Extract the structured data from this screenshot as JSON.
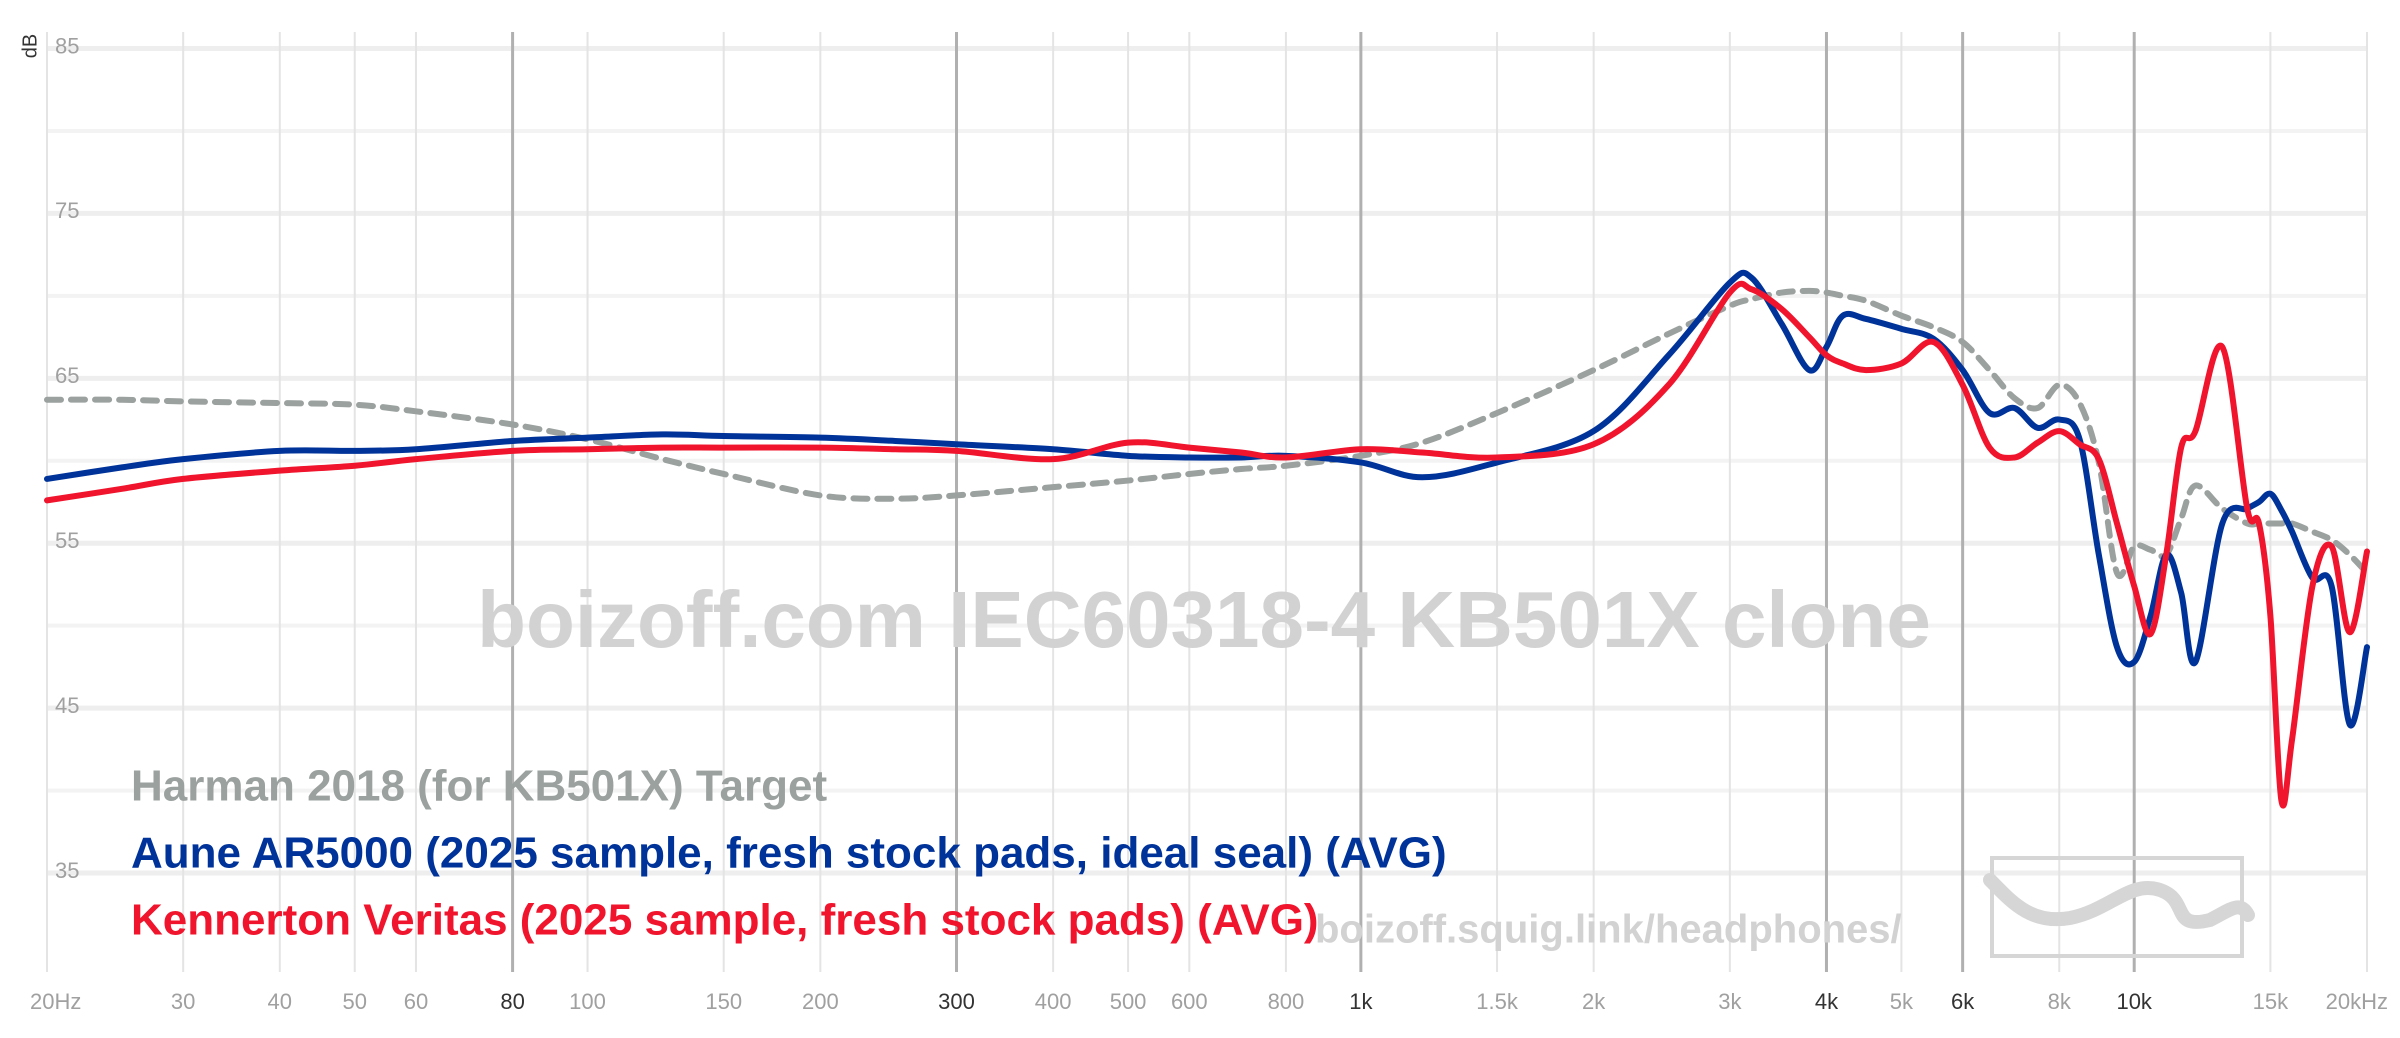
{
  "chart_data": {
    "type": "line",
    "y_label": "dB",
    "watermark": "boizoff.com IEC60318-4 KB501X clone",
    "source_url": "boizoff.squig.link/headphones/",
    "log_x": true,
    "grid": true,
    "xlim": [
      20,
      20000
    ],
    "ylim": [
      29,
      86
    ],
    "yticks": [
      35,
      45,
      55,
      65,
      75,
      85
    ],
    "y_minor_grid": [
      40,
      50,
      60,
      70,
      80
    ],
    "xticks": [
      {
        "value": 20,
        "label": "20Hz"
      },
      30,
      40,
      50,
      60,
      80,
      100,
      150,
      200,
      300,
      400,
      500,
      600,
      800,
      {
        "value": 1000,
        "label": "1k"
      },
      {
        "value": 1500,
        "label": "1.5k"
      },
      {
        "value": 2000,
        "label": "2k"
      },
      {
        "value": 3000,
        "label": "3k"
      },
      {
        "value": 4000,
        "label": "4k"
      },
      {
        "value": 5000,
        "label": "5k"
      },
      {
        "value": 6000,
        "label": "6k"
      },
      {
        "value": 8000,
        "label": "8k"
      },
      {
        "value": 10000,
        "label": "10k"
      },
      {
        "value": 15000,
        "label": "15k"
      },
      {
        "value": 20000,
        "label": "20kHz"
      }
    ],
    "xticks_emphasized": [
      80,
      300,
      1000,
      4000,
      6000,
      10000
    ],
    "x": [
      20,
      25,
      30,
      40,
      50,
      60,
      80,
      100,
      125,
      150,
      200,
      250,
      300,
      400,
      500,
      600,
      700,
      800,
      1000,
      1200,
      1500,
      2000,
      2500,
      3000,
      3200,
      3500,
      3800,
      4000,
      4200,
      4500,
      5000,
      5500,
      6000,
      6500,
      7000,
      7500,
      8000,
      8500,
      9000,
      9500,
      10000,
      10500,
      11000,
      11500,
      12000,
      13000,
      14000,
      14500,
      15000,
      15500,
      16000,
      17000,
      18000,
      19000,
      20000
    ],
    "series": [
      {
        "name": "Harman 2018 (for KB501X) Target",
        "color": "#9aa19f",
        "dashed": true,
        "values": [
          63.7,
          63.7,
          63.6,
          63.5,
          63.4,
          63.0,
          62.2,
          61.3,
          60.1,
          59.2,
          57.9,
          57.7,
          57.9,
          58.4,
          58.8,
          59.2,
          59.5,
          59.7,
          60.3,
          61.1,
          62.9,
          65.5,
          67.7,
          69.4,
          69.8,
          70.2,
          70.3,
          70.2,
          70.0,
          69.7,
          68.8,
          68.1,
          67.2,
          65.5,
          63.8,
          63.2,
          64.6,
          63.5,
          59.9,
          53.2,
          54.8,
          54.6,
          54.3,
          56.5,
          58.5,
          57.1,
          56.2,
          56.2,
          56.2,
          56.2,
          56.2,
          55.7,
          55.2,
          54.3,
          53.2
        ]
      },
      {
        "name": "Aune AR5000 (2025 sample, fresh stock pads, ideal seal) (AVG)",
        "color": "#00339a",
        "dashed": false,
        "values": [
          58.9,
          59.6,
          60.1,
          60.6,
          60.6,
          60.7,
          61.2,
          61.4,
          61.6,
          61.5,
          61.4,
          61.2,
          61.0,
          60.7,
          60.3,
          60.2,
          60.2,
          60.3,
          59.9,
          59.0,
          59.9,
          61.8,
          66.4,
          70.8,
          71.1,
          68.3,
          65.5,
          66.9,
          68.8,
          68.6,
          68.0,
          67.4,
          65.5,
          62.9,
          63.2,
          62.0,
          62.5,
          61.3,
          54.3,
          48.7,
          47.8,
          50.6,
          54.3,
          52.0,
          47.8,
          56.2,
          57.1,
          57.5,
          58.0,
          57.0,
          55.7,
          52.9,
          52.4,
          44.0,
          48.7
        ]
      },
      {
        "name": "Kennerton Veritas (2025 sample, fresh stock pads) (AVG)",
        "color": "#f0142d",
        "dashed": false,
        "values": [
          57.6,
          58.3,
          58.9,
          59.4,
          59.7,
          60.1,
          60.6,
          60.7,
          60.8,
          60.8,
          60.8,
          60.7,
          60.6,
          60.1,
          61.1,
          60.8,
          60.5,
          60.2,
          60.7,
          60.5,
          60.2,
          61.0,
          64.6,
          70.2,
          70.4,
          69.2,
          67.5,
          66.4,
          65.9,
          65.5,
          65.9,
          67.2,
          64.6,
          60.8,
          60.2,
          61.1,
          61.8,
          61.0,
          60.1,
          56.2,
          52.4,
          49.5,
          54.3,
          60.8,
          61.8,
          66.9,
          57.1,
          56.2,
          50.6,
          39.4,
          43.1,
          52.4,
          54.8,
          49.6,
          54.5
        ]
      }
    ]
  }
}
